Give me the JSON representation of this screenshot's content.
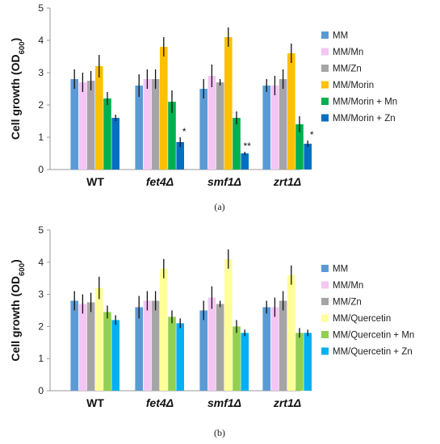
{
  "chart_data": [
    {
      "panel": "(a)",
      "type": "bar",
      "ylabel": "Cell growth (OD600)",
      "ylabel_main": "Cell growth (OD",
      "ylabel_sub": "600",
      "ylabel_close": ")",
      "ylim": [
        0,
        5
      ],
      "yticks": [
        0,
        1,
        2,
        3,
        4,
        5
      ],
      "categories": [
        "WT",
        "fet4Δ",
        "smf1Δ",
        "zrt1Δ"
      ],
      "category_italic": [
        false,
        true,
        true,
        true
      ],
      "legend_placement": "right",
      "series": [
        {
          "name": "MM",
          "color": "#5b9bd5",
          "values": [
            2.8,
            2.6,
            2.5,
            2.6
          ],
          "errors": [
            0.3,
            0.35,
            0.3,
            0.2
          ]
        },
        {
          "name": "MM/Mn",
          "color": "#f4c6f4",
          "values": [
            2.7,
            2.8,
            2.9,
            2.6
          ],
          "errors": [
            0.3,
            0.3,
            0.35,
            0.3
          ]
        },
        {
          "name": "MM/Zn",
          "color": "#a5a5a5",
          "values": [
            2.75,
            2.8,
            2.7,
            2.8
          ],
          "errors": [
            0.3,
            0.3,
            0.1,
            0.3
          ]
        },
        {
          "name": "MM/Morin",
          "color": "#ffc000",
          "values": [
            3.2,
            3.8,
            4.1,
            3.6
          ],
          "errors": [
            0.35,
            0.3,
            0.3,
            0.3
          ]
        },
        {
          "name": "MM/Morin + Mn",
          "color": "#00b050",
          "values": [
            2.2,
            2.1,
            1.6,
            1.4
          ],
          "errors": [
            0.2,
            0.35,
            0.2,
            0.25
          ]
        },
        {
          "name": "MM/Morin + Zn",
          "color": "#0070c0",
          "values": [
            1.6,
            0.85,
            0.5,
            0.8
          ],
          "errors": [
            0.1,
            0.15,
            0.05,
            0.1
          ]
        }
      ],
      "annotations": [
        {
          "category": 1,
          "series": 5,
          "text": "*"
        },
        {
          "category": 2,
          "series": 5,
          "text": "**"
        },
        {
          "category": 3,
          "series": 5,
          "text": "*"
        }
      ]
    },
    {
      "panel": "(b)",
      "type": "bar",
      "ylabel": "Cell growth (OD600)",
      "ylabel_main": "Cell growth (OD",
      "ylabel_sub": "600",
      "ylabel_close": ")",
      "ylim": [
        0,
        5
      ],
      "yticks": [
        0,
        1,
        2,
        3,
        4,
        5
      ],
      "categories": [
        "WT",
        "fet4Δ",
        "smf1Δ",
        "zrt1Δ"
      ],
      "category_italic": [
        false,
        true,
        true,
        true
      ],
      "legend_placement": "right",
      "series": [
        {
          "name": "MM",
          "color": "#5b9bd5",
          "values": [
            2.8,
            2.6,
            2.5,
            2.6
          ],
          "errors": [
            0.3,
            0.35,
            0.3,
            0.2
          ]
        },
        {
          "name": "MM/Mn",
          "color": "#f4c6f4",
          "values": [
            2.7,
            2.8,
            2.9,
            2.6
          ],
          "errors": [
            0.3,
            0.3,
            0.35,
            0.3
          ]
        },
        {
          "name": "MM/Zn",
          "color": "#a5a5a5",
          "values": [
            2.75,
            2.8,
            2.7,
            2.8
          ],
          "errors": [
            0.3,
            0.3,
            0.1,
            0.3
          ]
        },
        {
          "name": "MM/Quercetin",
          "color": "#ffff99",
          "values": [
            3.2,
            3.8,
            4.1,
            3.6
          ],
          "errors": [
            0.35,
            0.3,
            0.3,
            0.3
          ]
        },
        {
          "name": "MM/Quercetin + Mn",
          "color": "#92d050",
          "values": [
            2.45,
            2.3,
            2.0,
            1.8
          ],
          "errors": [
            0.2,
            0.2,
            0.2,
            0.15
          ]
        },
        {
          "name": "MM/Quercetin + Zn",
          "color": "#00b0f0",
          "values": [
            2.2,
            2.1,
            1.8,
            1.8
          ],
          "errors": [
            0.15,
            0.15,
            0.1,
            0.1
          ]
        }
      ],
      "annotations": []
    }
  ]
}
